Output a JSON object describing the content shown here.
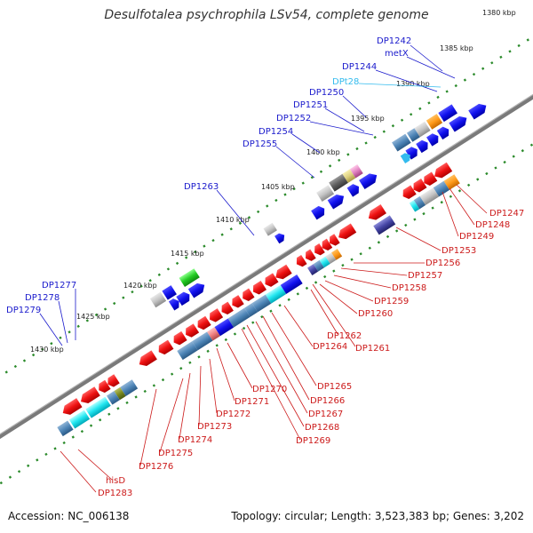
{
  "title": "Desulfotalea psychrophila LSv54, complete genome",
  "footer": {
    "accession": "Accession: NC_006138",
    "topology": "Topology: circular; Length: 3,523,383 bp; Genes: 3,202"
  },
  "colors": {
    "forward_label": "#1a1acc",
    "reverse_label": "#cc1a1a",
    "trna_label": "#33bbee",
    "backbone": "#7a7a7a",
    "ruler_dots": "#2a8a2a"
  },
  "ruler_ticks": [
    {
      "label": "1380 kbp"
    },
    {
      "label": "1385 kbp"
    },
    {
      "label": "1390 kbp"
    },
    {
      "label": "1395 kbp"
    },
    {
      "label": "1400 kbp"
    },
    {
      "label": "1405 kbp"
    },
    {
      "label": "1410 kbp"
    },
    {
      "label": "1415 kbp"
    },
    {
      "label": "1420 kbp"
    },
    {
      "label": "1425 kbp"
    },
    {
      "label": "1430 kbp"
    }
  ],
  "forward_genes": [
    {
      "label": "DP1242",
      "color": "#1a1acc"
    },
    {
      "label": "metX",
      "color": "#1a1acc"
    },
    {
      "label": "DP1244",
      "color": "#1a1acc"
    },
    {
      "label": "DPt28",
      "color": "#33bbee"
    },
    {
      "label": "DP1250",
      "color": "#1a1acc"
    },
    {
      "label": "DP1251",
      "color": "#1a1acc"
    },
    {
      "label": "DP1252",
      "color": "#1a1acc"
    },
    {
      "label": "DP1254",
      "color": "#1a1acc"
    },
    {
      "label": "DP1255",
      "color": "#1a1acc"
    },
    {
      "label": "DP1263",
      "color": "#1a1acc"
    },
    {
      "label": "DP1277",
      "color": "#1a1acc"
    },
    {
      "label": "DP1278",
      "color": "#1a1acc"
    },
    {
      "label": "DP1279",
      "color": "#1a1acc"
    }
  ],
  "reverse_genes": [
    {
      "label": "DP1247"
    },
    {
      "label": "DP1248"
    },
    {
      "label": "DP1249"
    },
    {
      "label": "DP1253"
    },
    {
      "label": "DP1256"
    },
    {
      "label": "DP1257"
    },
    {
      "label": "DP1258"
    },
    {
      "label": "DP1259"
    },
    {
      "label": "DP1260"
    },
    {
      "label": "DP1262"
    },
    {
      "label": "DP1261"
    },
    {
      "label": "DP1264"
    },
    {
      "label": "DP1265"
    },
    {
      "label": "DP1266"
    },
    {
      "label": "DP1267"
    },
    {
      "label": "DP1268"
    },
    {
      "label": "DP1269"
    },
    {
      "label": "DP1270"
    },
    {
      "label": "DP1271"
    },
    {
      "label": "DP1272"
    },
    {
      "label": "DP1273"
    },
    {
      "label": "DP1274"
    },
    {
      "label": "DP1275"
    },
    {
      "label": "DP1276"
    },
    {
      "label": "hisD"
    },
    {
      "label": "DP1283"
    }
  ]
}
